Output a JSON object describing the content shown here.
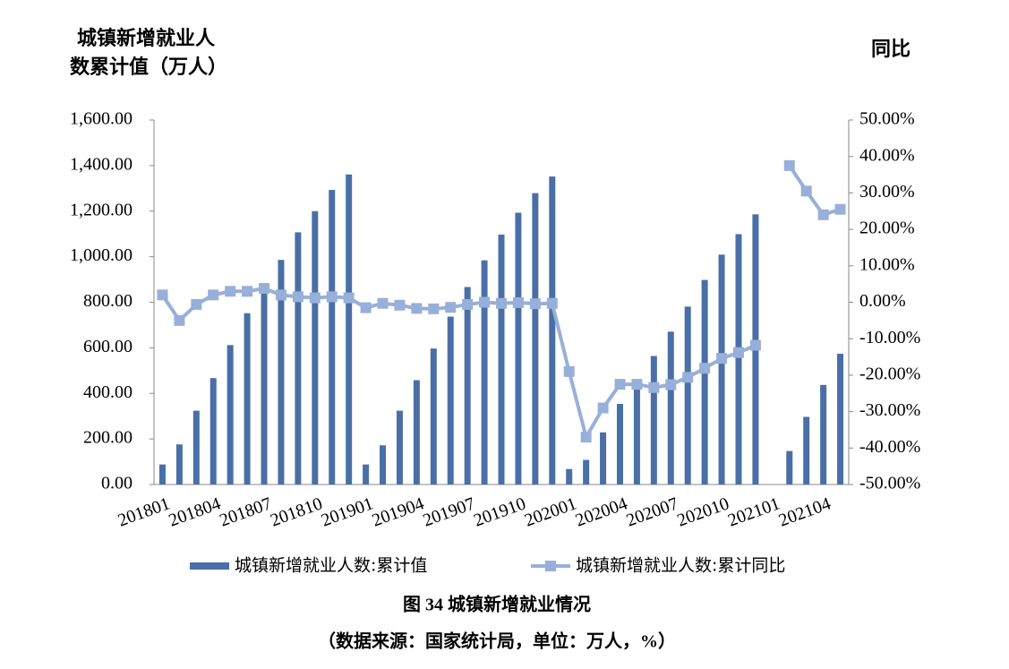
{
  "chart_data": {
    "type": "bar_line",
    "y_label": "城镇新增就业人数累计值（万人）",
    "y2_label": "同比",
    "caption": "图 34 城镇新增就业情况",
    "source": "（数据来源：国家统计局，单位：万人，%）",
    "categories": [
      "201801",
      null,
      null,
      "201804",
      null,
      null,
      "201807",
      null,
      null,
      "201810",
      null,
      null,
      "201901",
      null,
      null,
      "201904",
      null,
      null,
      "201907",
      null,
      null,
      "201910",
      null,
      null,
      "202001",
      null,
      null,
      "202004",
      null,
      null,
      "202007",
      null,
      null,
      "202010",
      null,
      null,
      "202101",
      null,
      null,
      "202104",
      null
    ],
    "series": [
      {
        "name": "城镇新增就业人数:累计值",
        "type": "bar",
        "color": "#4a6fa7",
        "values": [
          88,
          176,
          324,
          467,
          612,
          752,
          855,
          986,
          1107,
          1200,
          1293,
          1361,
          88,
          172,
          324,
          458,
          597,
          737,
          867,
          984,
          1097,
          1193,
          1279,
          1352,
          68,
          108,
          229,
          354,
          460,
          564,
          671,
          781,
          898,
          1009,
          1099,
          1186,
          null,
          147,
          297,
          437,
          574
        ]
      },
      {
        "name": "城镇新增就业人数:累计同比",
        "type": "line",
        "axis": "y2",
        "color": "#98afd9",
        "values": [
          2,
          -5,
          -0.6,
          2,
          3,
          3,
          3.8,
          2,
          1.5,
          1.2,
          1.5,
          1.2,
          -1.5,
          -0.3,
          -0.8,
          -1.7,
          -1.8,
          -1.4,
          -0.6,
          0,
          -0.3,
          -0.1,
          -0.4,
          -0.3,
          -19,
          -37,
          -29,
          -22.5,
          -22.5,
          -23.4,
          -22.6,
          -20.6,
          -18.1,
          -15.4,
          -13.8,
          -11.8,
          null,
          37.5,
          30.5,
          24,
          25.5
        ]
      }
    ],
    "ylim": [
      0,
      1600
    ],
    "yticks": [
      {
        "value": 0,
        "label": "0.00"
      },
      {
        "value": 200,
        "label": "200.00"
      },
      {
        "value": 400,
        "label": "400.00"
      },
      {
        "value": 600,
        "label": "600.00"
      },
      {
        "value": 800,
        "label": "800.00"
      },
      {
        "value": 1000,
        "label": "1,000.00"
      },
      {
        "value": 1200,
        "label": "1,200.00"
      },
      {
        "value": 1400,
        "label": "1,400.00"
      },
      {
        "value": 1600,
        "label": "1,600.00"
      }
    ],
    "y2lim": [
      -50,
      50
    ],
    "y2ticks": [
      {
        "value": -50,
        "label": "-50.00%"
      },
      {
        "value": -40,
        "label": "-40.00%"
      },
      {
        "value": -30,
        "label": "-30.00%"
      },
      {
        "value": -20,
        "label": "-20.00%"
      },
      {
        "value": -10,
        "label": "-10.00%"
      },
      {
        "value": 0,
        "label": "0.00%"
      },
      {
        "value": 10,
        "label": "10.00%"
      },
      {
        "value": 20,
        "label": "20.00%"
      },
      {
        "value": 30,
        "label": "30.00%"
      },
      {
        "value": 40,
        "label": "40.00%"
      },
      {
        "value": 50,
        "label": "50.00%"
      }
    ],
    "legend": "bottom"
  }
}
